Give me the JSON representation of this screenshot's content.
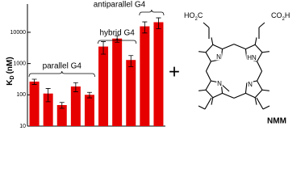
{
  "chart_data": {
    "type": "bar",
    "y_label": {
      "main": "K",
      "sub": "D",
      "unit": "(nM)"
    },
    "categories": [
      null,
      null,
      null,
      null,
      null,
      null,
      null,
      null,
      null,
      null
    ],
    "values": [
      265,
      110,
      47,
      185,
      100,
      3500,
      6300,
      1300,
      15500,
      21000
    ],
    "errors": [
      50,
      50,
      10,
      60,
      20,
      1500,
      1500,
      500,
      6000,
      8000
    ],
    "color": "#e60000",
    "ylim": [
      10,
      80000
    ],
    "yticks": [
      10,
      100,
      1000,
      10000
    ],
    "log_scale": true,
    "annotations": [
      "parallel G4",
      "hybrid G4",
      "antiparallel G4"
    ]
  },
  "structure": {
    "plus": "+",
    "left_acid": [
      "HO",
      "2",
      "C"
    ],
    "right_acid": [
      "CO",
      "2",
      "H"
    ],
    "n_labels": [
      "N",
      "HN",
      "N",
      "N"
    ],
    "name": "NMM"
  }
}
